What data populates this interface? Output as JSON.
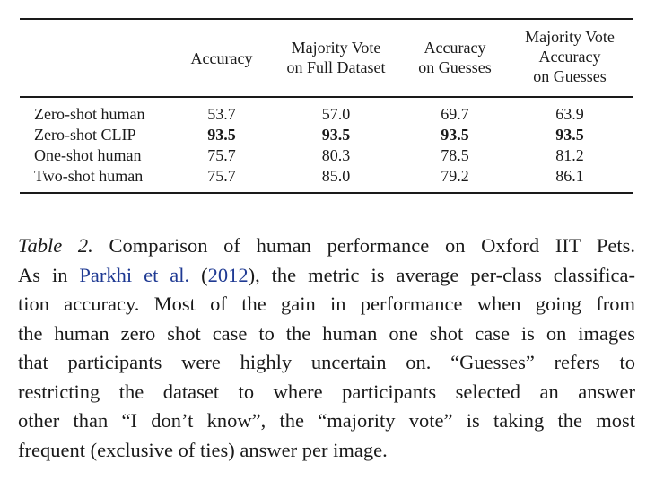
{
  "table": {
    "headers": {
      "col1": [
        "Accuracy"
      ],
      "col2": [
        "Majority Vote",
        "on Full Dataset"
      ],
      "col3": [
        "Accuracy",
        "on Guesses"
      ],
      "col4": [
        "Majority Vote",
        "Accuracy",
        "on Guesses"
      ]
    },
    "rows": [
      {
        "label": "Zero-shot human",
        "values": [
          "53.7",
          "57.0",
          "69.7",
          "63.9"
        ],
        "bold": false
      },
      {
        "label": "Zero-shot CLIP",
        "values": [
          "93.5",
          "93.5",
          "93.5",
          "93.5"
        ],
        "bold": true
      },
      {
        "label": "One-shot human",
        "values": [
          "75.7",
          "80.3",
          "78.5",
          "81.2"
        ],
        "bold": false
      },
      {
        "label": "Two-shot human",
        "values": [
          "75.7",
          "85.0",
          "79.2",
          "86.1"
        ],
        "bold": false
      }
    ]
  },
  "caption": {
    "label": "Table 2.",
    "line1_rest": " Comparison of human performance on Oxford IIT Pets.",
    "line2_pre": "As in ",
    "citation_author": "Parkhi et al.",
    "citation_open": " (",
    "citation_year": "2012",
    "line2_post": "), the metric is average per-class classifica-",
    "line3": "tion accuracy. Most of the gain in performance when going from",
    "line4": "the human zero shot case to the human one shot case is on images",
    "line5": "that participants were highly uncertain on.  “Guesses” refers to",
    "line6": "restricting the dataset to where participants selected an answer",
    "line7": "other than “I don’t know”, the “majority vote” is taking the most",
    "line8": "frequent (exclusive of ties) answer per image."
  }
}
